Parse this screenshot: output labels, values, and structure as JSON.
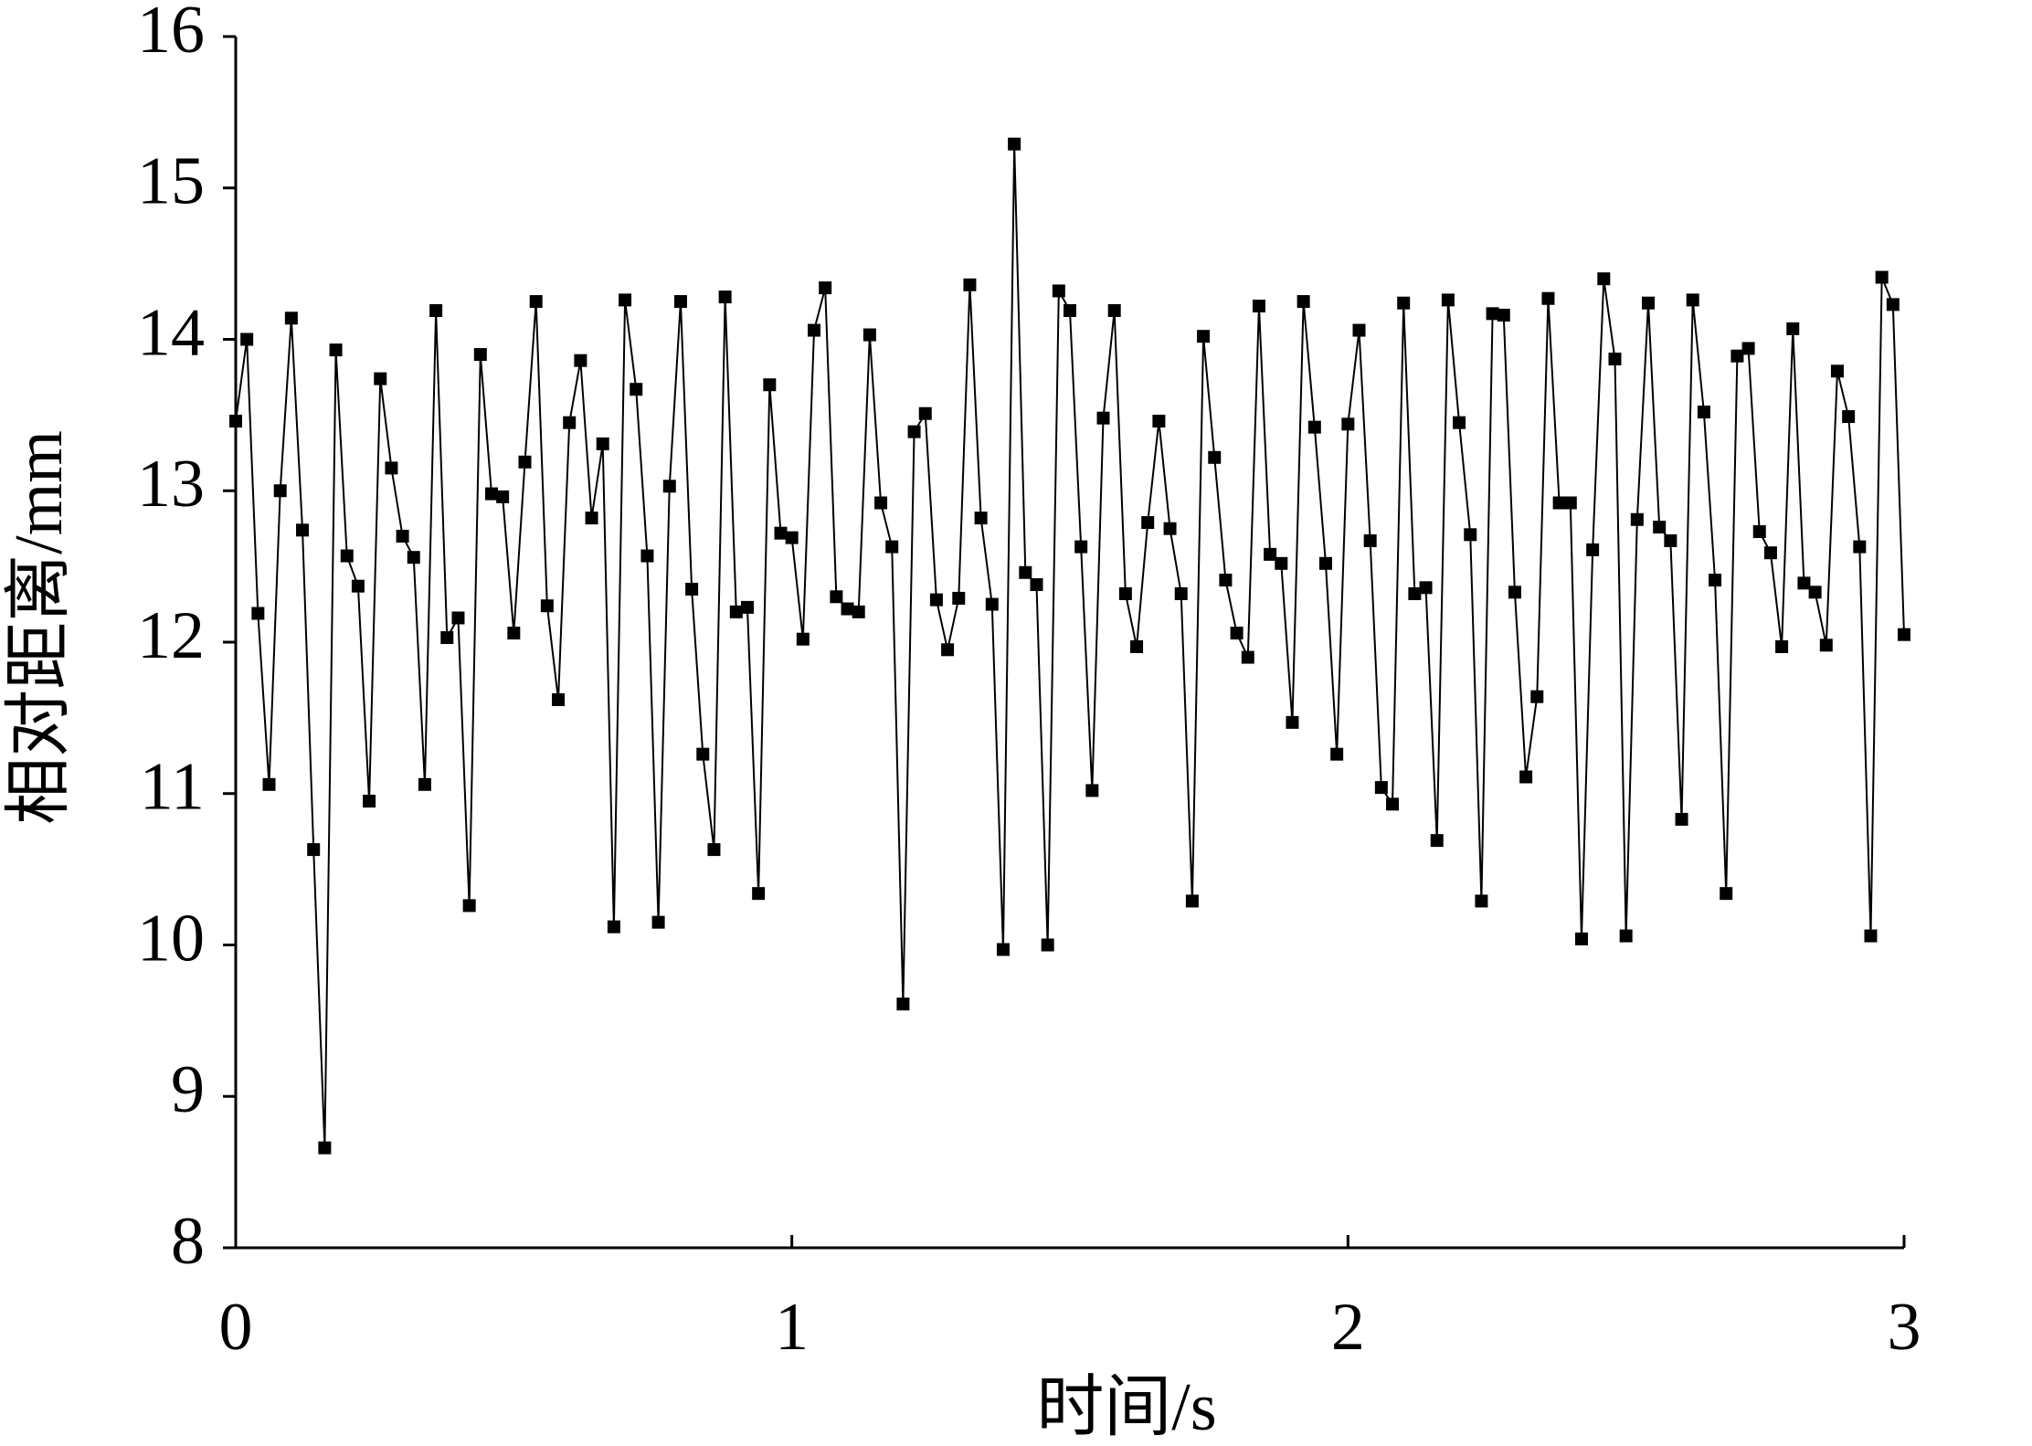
{
  "chart_data": {
    "type": "line",
    "xlabel": "时间/s",
    "ylabel": "相对距离/mm",
    "xlim": [
      0,
      3
    ],
    "xticks": [
      0,
      1,
      2,
      3
    ],
    "ylim": [
      8,
      16
    ],
    "yticks": [
      8,
      9,
      10,
      11,
      12,
      13,
      14,
      15,
      16
    ],
    "color": "#000000",
    "marker": "square",
    "x": [
      0,
      0.02,
      0.04,
      0.06,
      0.08,
      0.1,
      0.12,
      0.14,
      0.16,
      0.18,
      0.2,
      0.22,
      0.24,
      0.26,
      0.28,
      0.3,
      0.32,
      0.34,
      0.36,
      0.38,
      0.4,
      0.42,
      0.44,
      0.46,
      0.48,
      0.5,
      0.52,
      0.54,
      0.56,
      0.58,
      0.6,
      0.62,
      0.64,
      0.66,
      0.68,
      0.7,
      0.72,
      0.74,
      0.76,
      0.78,
      0.8,
      0.82,
      0.84,
      0.86,
      0.88,
      0.9,
      0.92,
      0.94,
      0.96,
      0.98,
      1,
      1.02,
      1.04,
      1.06,
      1.08,
      1.1,
      1.12,
      1.14,
      1.16,
      1.18,
      1.2,
      1.22,
      1.24,
      1.26,
      1.28,
      1.3,
      1.32,
      1.34,
      1.36,
      1.38,
      1.4,
      1.42,
      1.44,
      1.46,
      1.48,
      1.5,
      1.52,
      1.54,
      1.56,
      1.58,
      1.6,
      1.62,
      1.64,
      1.66,
      1.68,
      1.7,
      1.72,
      1.74,
      1.76,
      1.78,
      1.8,
      1.82,
      1.84,
      1.86,
      1.88,
      1.9,
      1.92,
      1.94,
      1.96,
      1.98,
      2,
      2.02,
      2.04,
      2.06,
      2.08,
      2.1,
      2.12,
      2.14,
      2.16,
      2.18,
      2.2,
      2.22,
      2.24,
      2.26,
      2.28,
      2.3,
      2.32,
      2.34,
      2.36,
      2.38,
      2.4,
      2.42,
      2.44,
      2.46,
      2.48,
      2.5,
      2.52,
      2.54,
      2.56,
      2.58,
      2.6,
      2.62,
      2.64,
      2.66,
      2.68,
      2.7,
      2.72,
      2.74,
      2.76,
      2.78,
      2.8,
      2.82,
      2.84,
      2.86,
      2.88,
      2.9,
      2.92,
      2.94,
      2.96,
      2.98,
      3
    ],
    "values": [
      13.46,
      14.0,
      12.19,
      11.06,
      13.0,
      14.14,
      12.74,
      10.63,
      8.66,
      13.93,
      12.57,
      12.37,
      10.95,
      13.74,
      13.15,
      12.7,
      12.56,
      11.06,
      14.19,
      12.03,
      12.16,
      10.26,
      13.9,
      12.98,
      12.96,
      12.06,
      13.19,
      14.25,
      12.24,
      11.62,
      13.45,
      13.86,
      12.82,
      13.31,
      10.12,
      14.26,
      13.67,
      12.57,
      10.15,
      13.03,
      14.25,
      12.35,
      11.26,
      10.63,
      14.28,
      12.2,
      12.23,
      10.34,
      13.7,
      12.72,
      12.69,
      12.02,
      14.06,
      14.34,
      12.3,
      12.22,
      12.2,
      14.03,
      12.92,
      12.63,
      9.61,
      13.39,
      13.51,
      12.28,
      11.95,
      12.29,
      14.36,
      12.82,
      12.25,
      9.97,
      15.29,
      12.46,
      12.38,
      10.0,
      14.32,
      14.19,
      12.63,
      11.02,
      13.48,
      14.19,
      12.32,
      11.97,
      12.79,
      13.46,
      12.75,
      12.32,
      10.29,
      14.02,
      13.22,
      12.41,
      12.06,
      11.9,
      14.22,
      12.58,
      12.52,
      11.47,
      14.25,
      13.42,
      12.52,
      11.26,
      13.44,
      14.06,
      12.67,
      11.04,
      10.93,
      14.24,
      12.32,
      12.36,
      10.69,
      14.26,
      13.45,
      12.71,
      10.29,
      14.17,
      14.16,
      12.33,
      11.11,
      11.64,
      14.27,
      12.92,
      12.92,
      10.04,
      12.61,
      14.4,
      13.87,
      10.06,
      12.81,
      14.24,
      12.76,
      12.67,
      10.83,
      14.26,
      13.52,
      12.41,
      10.34,
      13.89,
      13.94,
      12.73,
      12.59,
      11.97,
      14.07,
      12.39,
      12.33,
      11.98,
      13.79,
      13.49,
      12.63,
      10.06,
      14.41,
      14.23,
      12.05
    ]
  }
}
